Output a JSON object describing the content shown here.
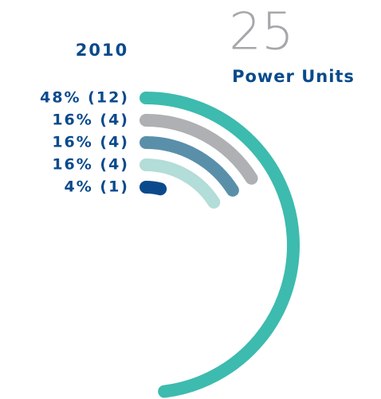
{
  "chart_data": {
    "type": "radial_bar",
    "title": "2010",
    "total": 25,
    "total_label": "Power Units",
    "values": [
      48,
      16,
      16,
      16,
      4
    ],
    "counts": [
      12,
      4,
      4,
      4,
      1
    ],
    "value_labels": [
      "48% (12)",
      "16% (4)",
      "16% (4)",
      "16% (4)",
      "4% (1)"
    ],
    "colors": [
      "#3dbbae",
      "#aeb0b3",
      "#5a8faa",
      "#b3ddd8",
      "#0a4a8c"
    ]
  }
}
